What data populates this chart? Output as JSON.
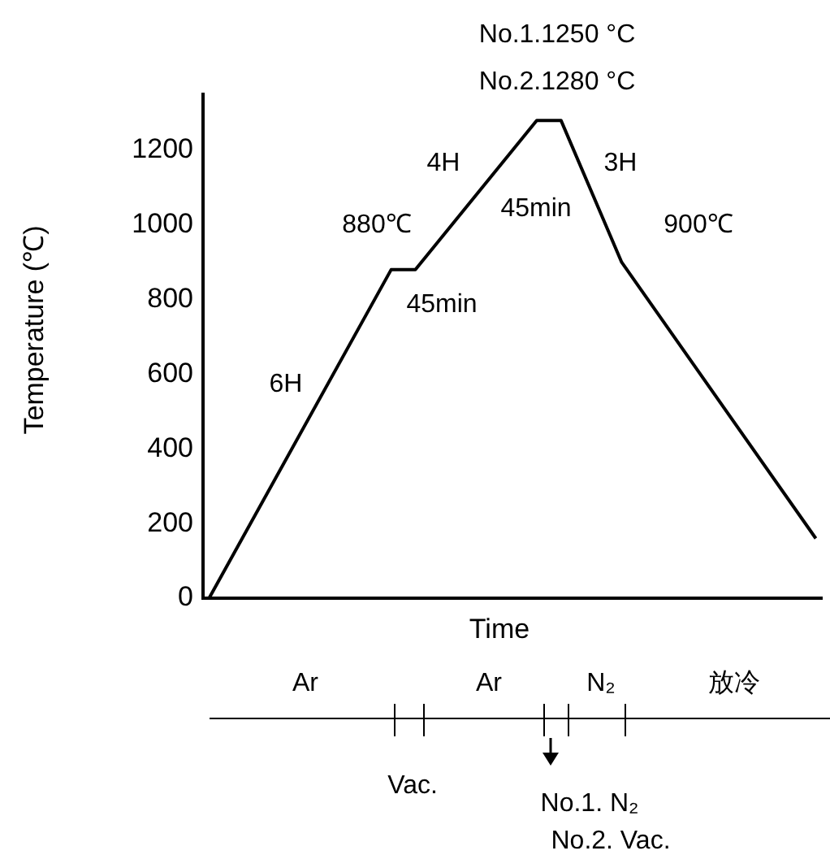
{
  "chart_data": {
    "type": "line",
    "xlabel": "Time",
    "ylabel": "Temperature (℃)",
    "categories": [
      null,
      null,
      null,
      null,
      null,
      null,
      null,
      null,
      null,
      null,
      null,
      null,
      null,
      null,
      null,
      null,
      null,
      null,
      null,
      null,
      null,
      null,
      null,
      null,
      null,
      null,
      null,
      null,
      null,
      null,
      null,
      null,
      null,
      null,
      null,
      null,
      null,
      null,
      null,
      null,
      null,
      null,
      null,
      null,
      null,
      null,
      null,
      null,
      null,
      null,
      null
    ],
    "series": [
      {
        "color": "#000000",
        "values": [
          0,
          null,
          null,
          null,
          null,
          null,
          null,
          null,
          null,
          null,
          null,
          null,
          null,
          null,
          null,
          880,
          null,
          880,
          null,
          null,
          null,
          null,
          null,
          null,
          null,
          null,
          null,
          1280,
          null,
          1280,
          null,
          null,
          null,
          null,
          900,
          null,
          null,
          null,
          null,
          null,
          null,
          null,
          null,
          null,
          null,
          null,
          null,
          null,
          null,
          null,
          160
        ]
      }
    ],
    "ylim": [
      0,
      1350
    ],
    "yticks": [
      0,
      200,
      400,
      600,
      800,
      1000,
      1200
    ],
    "grid": false,
    "legend": false,
    "marker": "none",
    "line_style": "solid",
    "tick_labels": "y",
    "annotations": [
      "No.1.1250 °C",
      "No.2.1280 °C",
      "4H",
      "3H",
      "880℃",
      "45min",
      "45min",
      "900℃",
      "6H",
      "Ar",
      "Ar",
      "N₂",
      "放冷",
      "Vac.",
      "No.1. N₂",
      "No.2. Vac."
    ]
  }
}
